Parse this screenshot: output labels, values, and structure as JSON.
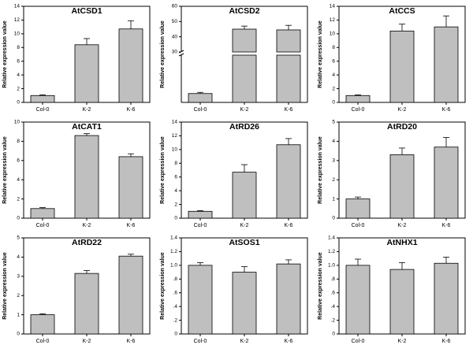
{
  "chart_data": [
    {
      "type": "bar",
      "title": "AtCSD1",
      "ylabel": "Relative expression value",
      "categories": [
        "Col-0",
        "K-2",
        "K-6"
      ],
      "values": [
        1.0,
        8.4,
        10.7
      ],
      "errors": [
        0.1,
        0.9,
        1.2
      ],
      "ylim": [
        0,
        14
      ],
      "yticks": [
        0,
        2,
        4,
        6,
        8,
        10,
        12,
        14
      ],
      "ytick_labels": [
        "0",
        "2",
        "4",
        "6",
        "8",
        "10",
        "12",
        "14"
      ],
      "bar_color": "#bfbfbf"
    },
    {
      "type": "bar",
      "title": "AtCSD2",
      "ylabel": "Relative expression value",
      "categories": [
        "Col-0",
        "K-2",
        "K-6"
      ],
      "values": [
        1.5,
        45.0,
        44.5
      ],
      "errors": [
        0.2,
        2.0,
        3.0
      ],
      "axis_break": {
        "lower": [
          0,
          8
        ],
        "upper": [
          30,
          60
        ]
      },
      "yticks_upper": [
        30,
        40,
        50,
        60
      ],
      "ytick_labels_upper": [
        "30",
        "40",
        "50",
        "60"
      ],
      "bar_color": "#bfbfbf"
    },
    {
      "type": "bar",
      "title": "AtCCS",
      "ylabel": "Relative expression value",
      "categories": [
        "Col-0",
        "K-2",
        "K-6"
      ],
      "values": [
        1.0,
        10.4,
        11.0
      ],
      "errors": [
        0.1,
        1.0,
        1.6
      ],
      "ylim": [
        0,
        14
      ],
      "yticks": [
        0,
        2,
        4,
        6,
        8,
        10,
        12,
        14
      ],
      "ytick_labels": [
        "0",
        "2",
        "4",
        "6",
        "8",
        "10",
        "12",
        "14"
      ],
      "bar_color": "#bfbfbf"
    },
    {
      "type": "bar",
      "title": "AtCAT1",
      "ylabel": "Relative expression value",
      "categories": [
        "Col-0",
        "K-2",
        "K-6"
      ],
      "values": [
        1.0,
        8.6,
        6.4
      ],
      "errors": [
        0.1,
        0.2,
        0.3
      ],
      "ylim": [
        0,
        10
      ],
      "yticks": [
        0,
        2,
        4,
        6,
        8,
        10
      ],
      "ytick_labels": [
        "0",
        "2",
        "4",
        "6",
        "8",
        "10"
      ],
      "bar_color": "#bfbfbf"
    },
    {
      "type": "bar",
      "title": "AtRD26",
      "ylabel": "Relative expression value",
      "categories": [
        "Col-0",
        "K-2",
        "K-6"
      ],
      "values": [
        1.0,
        6.7,
        10.7
      ],
      "errors": [
        0.1,
        1.1,
        0.9
      ],
      "ylim": [
        0,
        14
      ],
      "yticks": [
        0,
        2,
        4,
        6,
        8,
        10,
        12,
        14
      ],
      "ytick_labels": [
        "0",
        "2",
        "4",
        "6",
        "8",
        "10",
        "12",
        "14"
      ],
      "bar_color": "#bfbfbf"
    },
    {
      "type": "bar",
      "title": "AtRD20",
      "ylabel": "Relative expression value",
      "categories": [
        "Col-0",
        "K-2",
        "K-6"
      ],
      "values": [
        1.0,
        3.3,
        3.7
      ],
      "errors": [
        0.1,
        0.35,
        0.5
      ],
      "ylim": [
        0,
        5
      ],
      "yticks": [
        0,
        1,
        2,
        3,
        4,
        5
      ],
      "ytick_labels": [
        "0",
        "1",
        "2",
        "3",
        "4",
        "5"
      ],
      "bar_color": "#bfbfbf"
    },
    {
      "type": "bar",
      "title": "AtRD22",
      "ylabel": "Relative expression value",
      "categories": [
        "Col-0",
        "K-2",
        "K-6"
      ],
      "values": [
        1.0,
        3.15,
        4.05
      ],
      "errors": [
        0.05,
        0.15,
        0.1
      ],
      "ylim": [
        0,
        5
      ],
      "yticks": [
        0,
        1,
        2,
        3,
        4,
        5
      ],
      "ytick_labels": [
        "0",
        "1",
        "2",
        "3",
        "4",
        "5"
      ],
      "bar_color": "#bfbfbf"
    },
    {
      "type": "bar",
      "title": "AtSOS1",
      "ylabel": "Relative expression value",
      "categories": [
        "Col-0",
        "K-2",
        "K-6"
      ],
      "values": [
        1.0,
        0.9,
        1.02
      ],
      "errors": [
        0.04,
        0.08,
        0.06
      ],
      "ylim": [
        0,
        1.4
      ],
      "yticks": [
        0,
        0.2,
        0.4,
        0.6,
        0.8,
        1.0,
        1.2,
        1.4
      ],
      "ytick_labels": [
        "0",
        ".2",
        ".4",
        ".6",
        ".8",
        "1.0",
        "1.2",
        "1.4"
      ],
      "bar_color": "#bfbfbf"
    },
    {
      "type": "bar",
      "title": "AtNHX1",
      "ylabel": "Relative expression value",
      "categories": [
        "Col-0",
        "K-2",
        "K-6"
      ],
      "values": [
        1.0,
        0.94,
        1.03
      ],
      "errors": [
        0.09,
        0.1,
        0.09
      ],
      "ylim": [
        0,
        1.4
      ],
      "yticks": [
        0,
        0.2,
        0.4,
        0.6,
        0.8,
        1.0,
        1.2,
        1.4
      ],
      "ytick_labels": [
        "0",
        ".2",
        ".4",
        ".6",
        ".8",
        "1.0",
        "1.2",
        "1.4"
      ],
      "bar_color": "#bfbfbf"
    }
  ]
}
